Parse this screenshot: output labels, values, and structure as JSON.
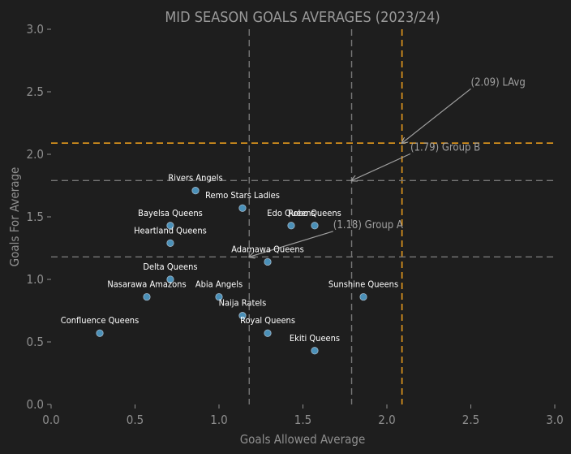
{
  "chart_data": {
    "type": "scatter",
    "title": "MID SEASON GOALS AVERAGES (2023/24)",
    "xlabel": "Goals Allowed Average",
    "ylabel": "Goals For Average",
    "xlim": [
      0,
      3
    ],
    "ylim": [
      0,
      3
    ],
    "xticks": [
      "0.0",
      "0.5",
      "1.0",
      "1.5",
      "2.0",
      "2.5",
      "3.0"
    ],
    "yticks": [
      "0.0",
      "0.5",
      "1.0",
      "1.5",
      "2.0",
      "2.5",
      "3.0"
    ],
    "points": [
      {
        "name": "Rivers Angels",
        "x": 0.86,
        "y": 1.71
      },
      {
        "name": "Remo Stars Ladies",
        "x": 1.14,
        "y": 1.57
      },
      {
        "name": "Bayelsa Queens",
        "x": 0.71,
        "y": 1.43
      },
      {
        "name": "Edo Queens",
        "x": 1.43,
        "y": 1.43
      },
      {
        "name": "Robo Queens",
        "x": 1.57,
        "y": 1.43
      },
      {
        "name": "Heartland Queens",
        "x": 0.71,
        "y": 1.29
      },
      {
        "name": "Adamawa Queens",
        "x": 1.29,
        "y": 1.14
      },
      {
        "name": "Delta Queens",
        "x": 0.71,
        "y": 1.0
      },
      {
        "name": "Nasarawa Amazons",
        "x": 0.57,
        "y": 0.86
      },
      {
        "name": "Abia Angels",
        "x": 1.0,
        "y": 0.86
      },
      {
        "name": "Sunshine Queens",
        "x": 1.86,
        "y": 0.86
      },
      {
        "name": "Naija Ratels",
        "x": 1.14,
        "y": 0.71
      },
      {
        "name": "Confluence Queens",
        "x": 0.29,
        "y": 0.57
      },
      {
        "name": "Royal Queens",
        "x": 1.29,
        "y": 0.57
      },
      {
        "name": "Ekiti Queens",
        "x": 1.57,
        "y": 0.43
      }
    ],
    "reference_lines": [
      {
        "orientation": "vertical",
        "value": 2.09,
        "color": "#e69a1d"
      },
      {
        "orientation": "horizontal",
        "value": 2.09,
        "color": "#e69a1d"
      },
      {
        "orientation": "vertical",
        "value": 1.18,
        "color": "#777777"
      },
      {
        "orientation": "horizontal",
        "value": 1.18,
        "color": "#777777"
      },
      {
        "orientation": "vertical",
        "value": 1.79,
        "color": "#777777"
      },
      {
        "orientation": "horizontal",
        "value": 1.79,
        "color": "#777777"
      }
    ],
    "annotations": [
      {
        "text": "(2.09) LAvg",
        "target_x": 2.09,
        "target_y": 2.09,
        "text_x": 2.5,
        "text_y": 2.55
      },
      {
        "text": "(1.79) Group B",
        "target_x": 1.79,
        "target_y": 1.79,
        "text_x": 2.14,
        "text_y": 2.03
      },
      {
        "text": "(1.18) Group A",
        "target_x": 1.18,
        "target_y": 1.18,
        "text_x": 1.68,
        "text_y": 1.41
      }
    ],
    "colors": {
      "background": "#1e1e1e",
      "point": "#4a90b8",
      "point_edge": "#9fb6c8",
      "tick": "#8f8f8f",
      "title": "#9a9a9a",
      "label": "#ffffff",
      "annotation": "#a0a0a0"
    }
  }
}
